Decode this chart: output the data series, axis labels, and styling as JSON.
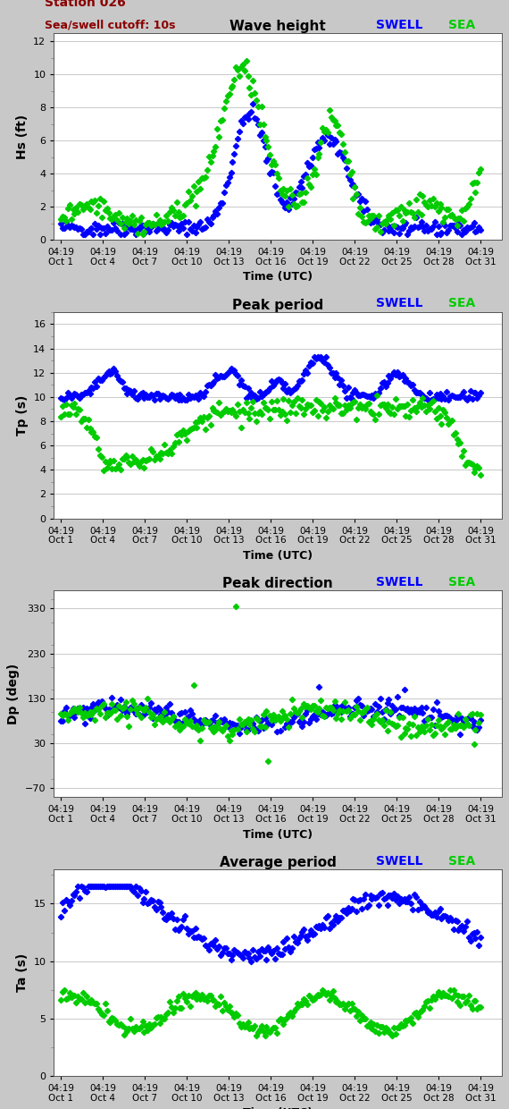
{
  "title1": "Wave height",
  "title2": "Peak period",
  "title3": "Peak direction",
  "title4": "Average period",
  "station_label": "Station 026",
  "cutoff_label": "Sea/swell cutoff: 10s",
  "ylabel1": "Hs (ft)",
  "ylabel2": "Tp (s)",
  "ylabel3": "Dp (deg)",
  "ylabel4": "Ta (s)",
  "xlabel": "Time (UTC)",
  "swell_color": "#0000ff",
  "sea_color": "#00cc00",
  "bg_color": "#c8c8c8",
  "plot_bg": "#ffffff",
  "yticks1": [
    0,
    2,
    4,
    6,
    8,
    10,
    12
  ],
  "ylim1": [
    0,
    12.5
  ],
  "yticks2": [
    0,
    2,
    4,
    6,
    8,
    10,
    12,
    14,
    16
  ],
  "ylim2": [
    0,
    17
  ],
  "yticks3": [
    -70,
    30,
    130,
    230,
    330
  ],
  "ylim3": [
    -90,
    370
  ],
  "yticks4": [
    0,
    5,
    10,
    15
  ],
  "ylim4": [
    0,
    18
  ],
  "xtick_labels": [
    "04:19\nOct 1",
    "04:19\nOct 4",
    "04:19\nOct 7",
    "04:19\nOct 10",
    "04:19\nOct 13",
    "04:19\nOct 16",
    "04:19\nOct 19",
    "04:19\nOct 22",
    "04:19\nOct 25",
    "04:19\nOct 28",
    "04:19\nOct 31"
  ],
  "xtick_positions": [
    0,
    3,
    6,
    9,
    12,
    15,
    18,
    21,
    24,
    27,
    30
  ],
  "xlim": [
    -0.5,
    31.5
  ]
}
